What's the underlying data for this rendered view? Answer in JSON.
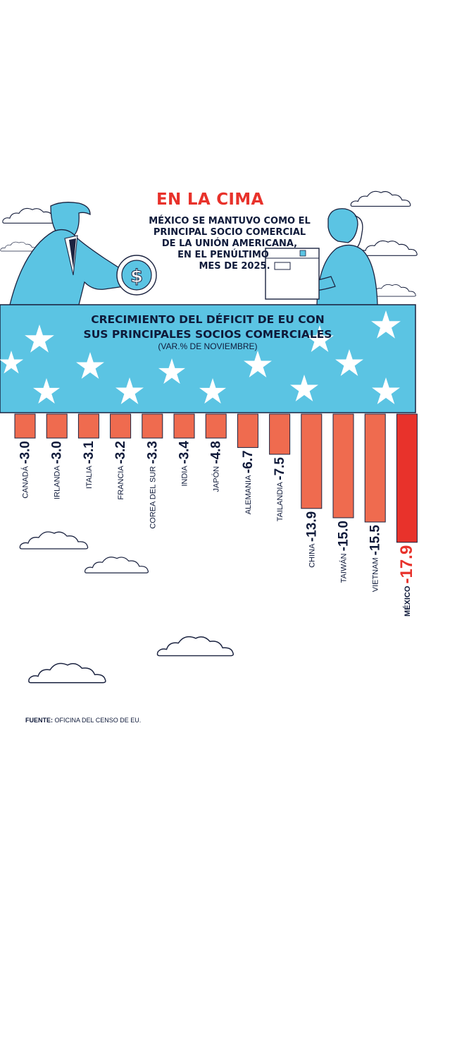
{
  "header": {
    "title": "EN LA CIMA",
    "subtitle_lines": [
      "MÉXICO SE MANTUVO COMO EL",
      "PRINCIPAL SOCIO COMERCIAL",
      "DE LA UNIÓN AMERICANA,",
      "EN EL PENÚLTIMO",
      "MES DE 2025."
    ]
  },
  "chart_data": {
    "type": "bar",
    "title_lines": [
      "CRECIMIENTO DEL DÉFICIT DE EU CON",
      "SUS PRINCIPALES SOCIOS COMERCIALES"
    ],
    "subtitle": "(VAR.% DE NOVIEMBRE)",
    "categories": [
      "CANADÁ",
      "IRLANDA",
      "ITALIA",
      "FRANCIA",
      "COREA DEL SUR",
      "INDIA",
      "JAPÓN",
      "ALEMANIA",
      "TAILANDIA",
      "CHINA",
      "TAIWÁN",
      "VIETNAM",
      "MÉXICO"
    ],
    "values": [
      -3.0,
      -3.0,
      -3.1,
      -3.2,
      -3.3,
      -3.4,
      -4.8,
      -6.7,
      -7.5,
      -13.9,
      -15.0,
      -15.5,
      -17.9
    ],
    "value_labels": [
      "-3.0",
      "-3.0",
      "-3.1",
      "-3.2",
      "-3.3",
      "-3.4",
      "-4.8",
      "-6.7",
      "-7.5",
      "-13.9",
      "-15.0",
      "-15.5",
      "-17.9"
    ],
    "highlight_category": "MÉXICO",
    "colors": {
      "bar": "#ef6b4f",
      "highlight": "#e8322b",
      "bar_outline": "#1b2340",
      "banner": "#5bc4e3",
      "title": "#0f1a3a",
      "header_title": "#e8322b"
    }
  },
  "source": {
    "label": "FUENTE:",
    "text": "OFICINA DEL CENSO DE EU."
  },
  "illustration": {
    "left_figure": "man-handing-coin-icon",
    "coin": "dollar-coin-icon",
    "right_figure": "woman-holding-box-icon",
    "box": "package-box-icon",
    "clouds": "cloud-icon",
    "stars": "star-icon"
  }
}
